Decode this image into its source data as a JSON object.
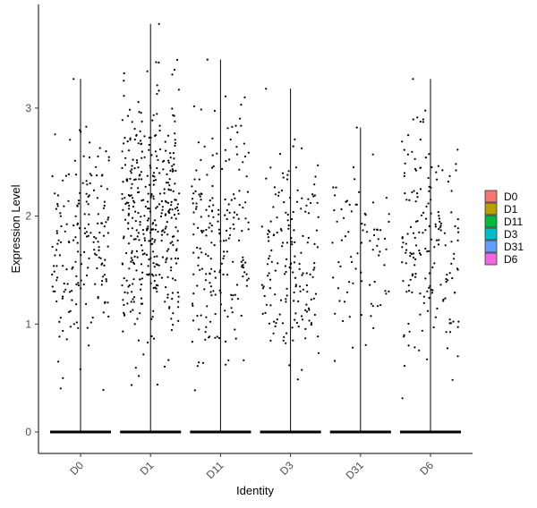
{
  "chart_data": {
    "type": "scatter",
    "subtype": "jittered violin/strip plot",
    "title": "",
    "xlabel": "Identity",
    "ylabel": "Expression Level",
    "ylim": [
      -0.22,
      3.9
    ],
    "yticks": [
      0,
      1,
      2,
      3
    ],
    "grid": false,
    "legend_position": "right",
    "categories": [
      "D0",
      "D1",
      "D11",
      "D3",
      "D31",
      "D6"
    ],
    "series": [
      {
        "name": "D0",
        "color": "#F8766D",
        "max": 3.27,
        "nonzero_count": 190,
        "nonzero_range": [
          0.2,
          3.27
        ]
      },
      {
        "name": "D1",
        "color": "#B79F00",
        "max": 3.78,
        "nonzero_count": 400,
        "nonzero_range": [
          0.2,
          3.78
        ]
      },
      {
        "name": "D11",
        "color": "#00BA38",
        "max": 3.45,
        "nonzero_count": 210,
        "nonzero_range": [
          0.18,
          3.45
        ]
      },
      {
        "name": "D3",
        "color": "#00BFC4",
        "max": 3.18,
        "nonzero_count": 170,
        "nonzero_range": [
          0.13,
          3.18
        ]
      },
      {
        "name": "D31",
        "color": "#619CFF",
        "max": 2.82,
        "nonzero_count": 80,
        "nonzero_range": [
          0.3,
          2.82
        ]
      },
      {
        "name": "D6",
        "color": "#F564E3",
        "max": 3.27,
        "nonzero_count": 180,
        "nonzero_range": [
          0.15,
          3.27
        ]
      }
    ]
  }
}
